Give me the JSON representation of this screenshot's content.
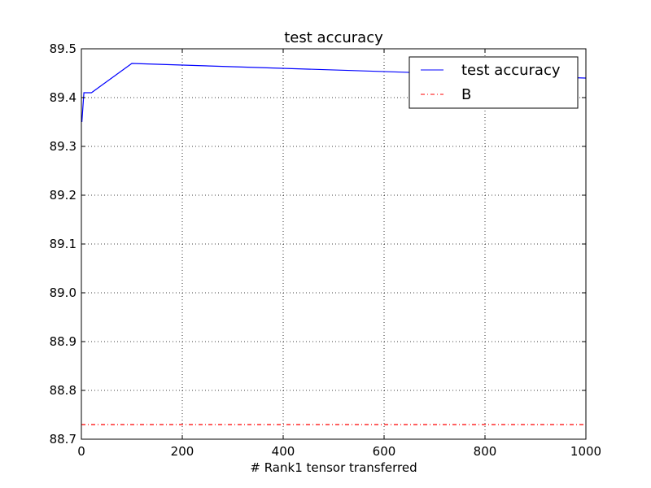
{
  "chart_data": {
    "type": "line",
    "title": "test accuracy",
    "xlabel": "# Rank1 tensor transferred",
    "ylabel": "",
    "xlim": [
      0,
      1000
    ],
    "ylim": [
      88.7,
      89.5
    ],
    "xticks": [
      0,
      200,
      400,
      600,
      800,
      1000
    ],
    "xtick_labels": [
      "0",
      "200",
      "400",
      "600",
      "800",
      "1000"
    ],
    "yticks": [
      88.7,
      88.8,
      88.9,
      89.0,
      89.1,
      89.2,
      89.3,
      89.4,
      89.5
    ],
    "ytick_labels": [
      "88.7",
      "88.8",
      "88.9",
      "89.0",
      "89.1",
      "89.2",
      "89.3",
      "89.4",
      "89.5"
    ],
    "grid": true,
    "legend_position": "top-right",
    "series": [
      {
        "name": "test accuracy",
        "style": "solid",
        "color": "#0000ff",
        "x": [
          1,
          5,
          10,
          20,
          100,
          1000
        ],
        "y": [
          89.35,
          89.41,
          89.41,
          89.41,
          89.47,
          89.44
        ]
      },
      {
        "name": "B",
        "style": "dashdot",
        "color": "#ff0000",
        "x": [
          0,
          1000
        ],
        "y": [
          88.73,
          88.73
        ]
      }
    ]
  }
}
